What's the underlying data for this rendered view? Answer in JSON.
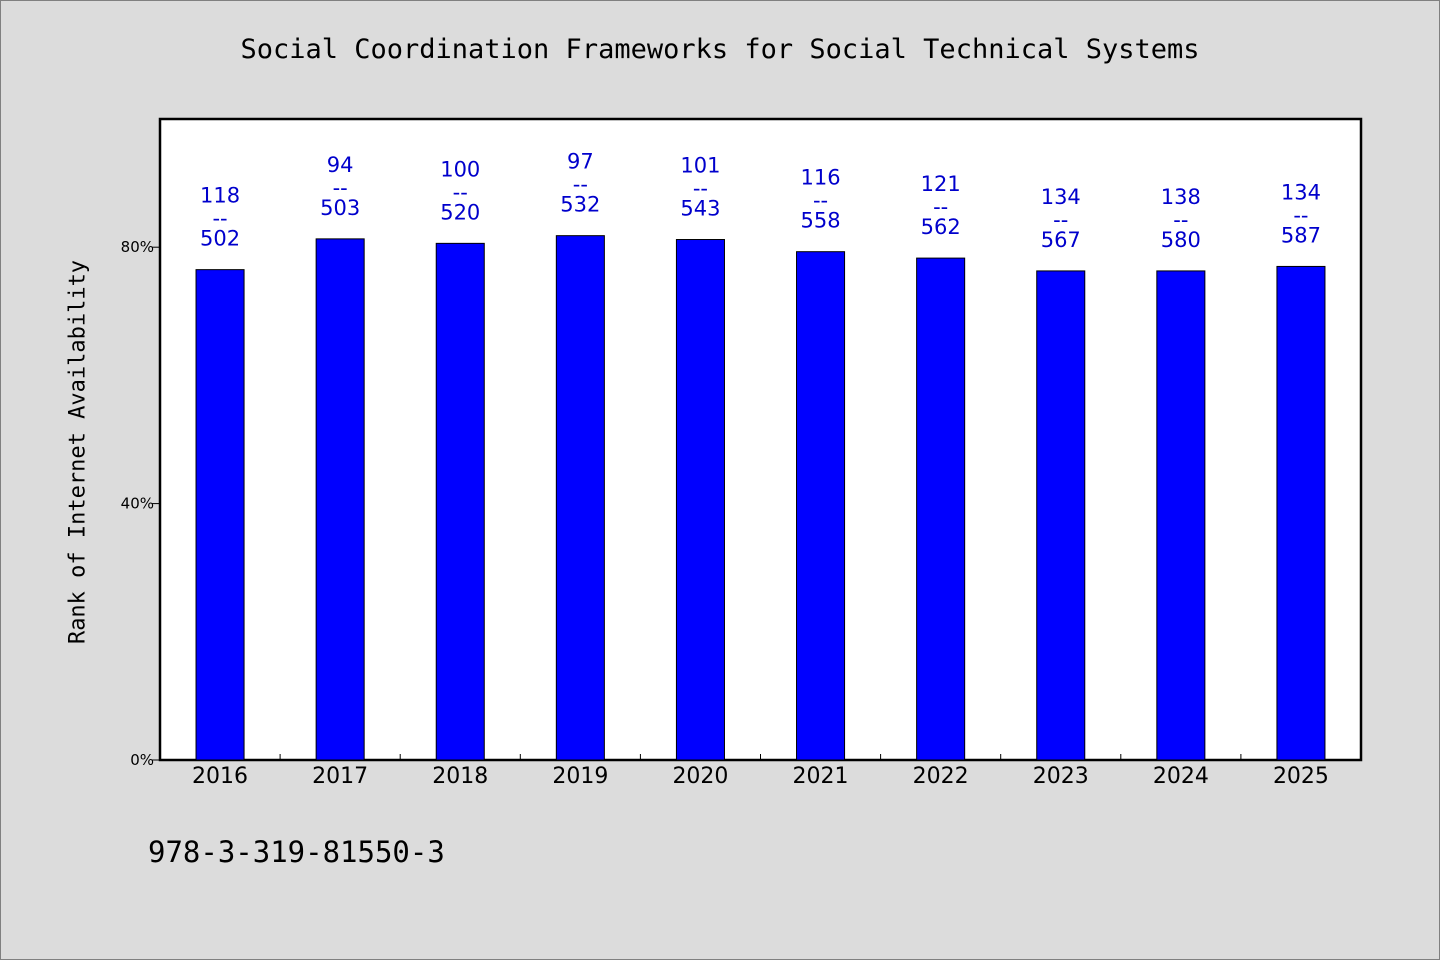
{
  "chart_data": {
    "type": "bar",
    "title": "Social Coordination Frameworks for Social Technical Systems",
    "xlabel": "",
    "ylabel": "Rank of Internet Availability",
    "categories": [
      "2016",
      "2017",
      "2018",
      "2019",
      "2020",
      "2021",
      "2022",
      "2023",
      "2024",
      "2025"
    ],
    "values": [
      76.5,
      81.3,
      80.6,
      81.8,
      81.2,
      79.3,
      78.3,
      76.3,
      76.3,
      77.0
    ],
    "labels_top": [
      "118",
      "94",
      "100",
      "97",
      "101",
      "116",
      "121",
      "134",
      "138",
      "134"
    ],
    "labels_sep": "--",
    "labels_bottom": [
      "502",
      "503",
      "520",
      "532",
      "543",
      "558",
      "562",
      "567",
      "580",
      "587"
    ],
    "ylim": [
      0,
      100
    ],
    "yticks": [
      0,
      40,
      80
    ],
    "ytick_labels": [
      "0%",
      "40%",
      "80%"
    ],
    "grid": false,
    "legend": "none",
    "colors": {
      "bar": "#0000ff",
      "label": "#0000cc",
      "background": "#dcdcdc",
      "plot": "#ffffff"
    }
  },
  "footnote": "978-3-319-81550-3"
}
